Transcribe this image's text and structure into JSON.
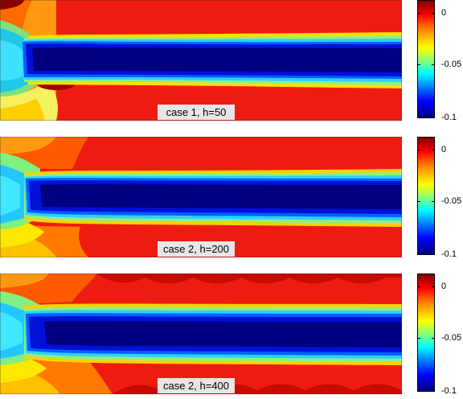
{
  "panels": [
    {
      "label": "case 1, h=50",
      "colorbar": {
        "ticks": [
          "0",
          "-0.05",
          "-0.1"
        ]
      }
    },
    {
      "label": "case 2, h=200",
      "colorbar": {
        "ticks": [
          "0",
          "-0.05",
          "-0.1"
        ]
      }
    },
    {
      "label": "case 2, h=400",
      "colorbar": {
        "ticks": [
          "0",
          "-0.05",
          "-0.1"
        ]
      }
    }
  ],
  "colormap": {
    "name": "jet",
    "range": [
      -0.1,
      0.01
    ],
    "stops": [
      "#00007f",
      "#0000ff",
      "#007fff",
      "#00ffff",
      "#7fff7f",
      "#ffff00",
      "#ff7f00",
      "#ff0000",
      "#7f0000"
    ]
  }
}
